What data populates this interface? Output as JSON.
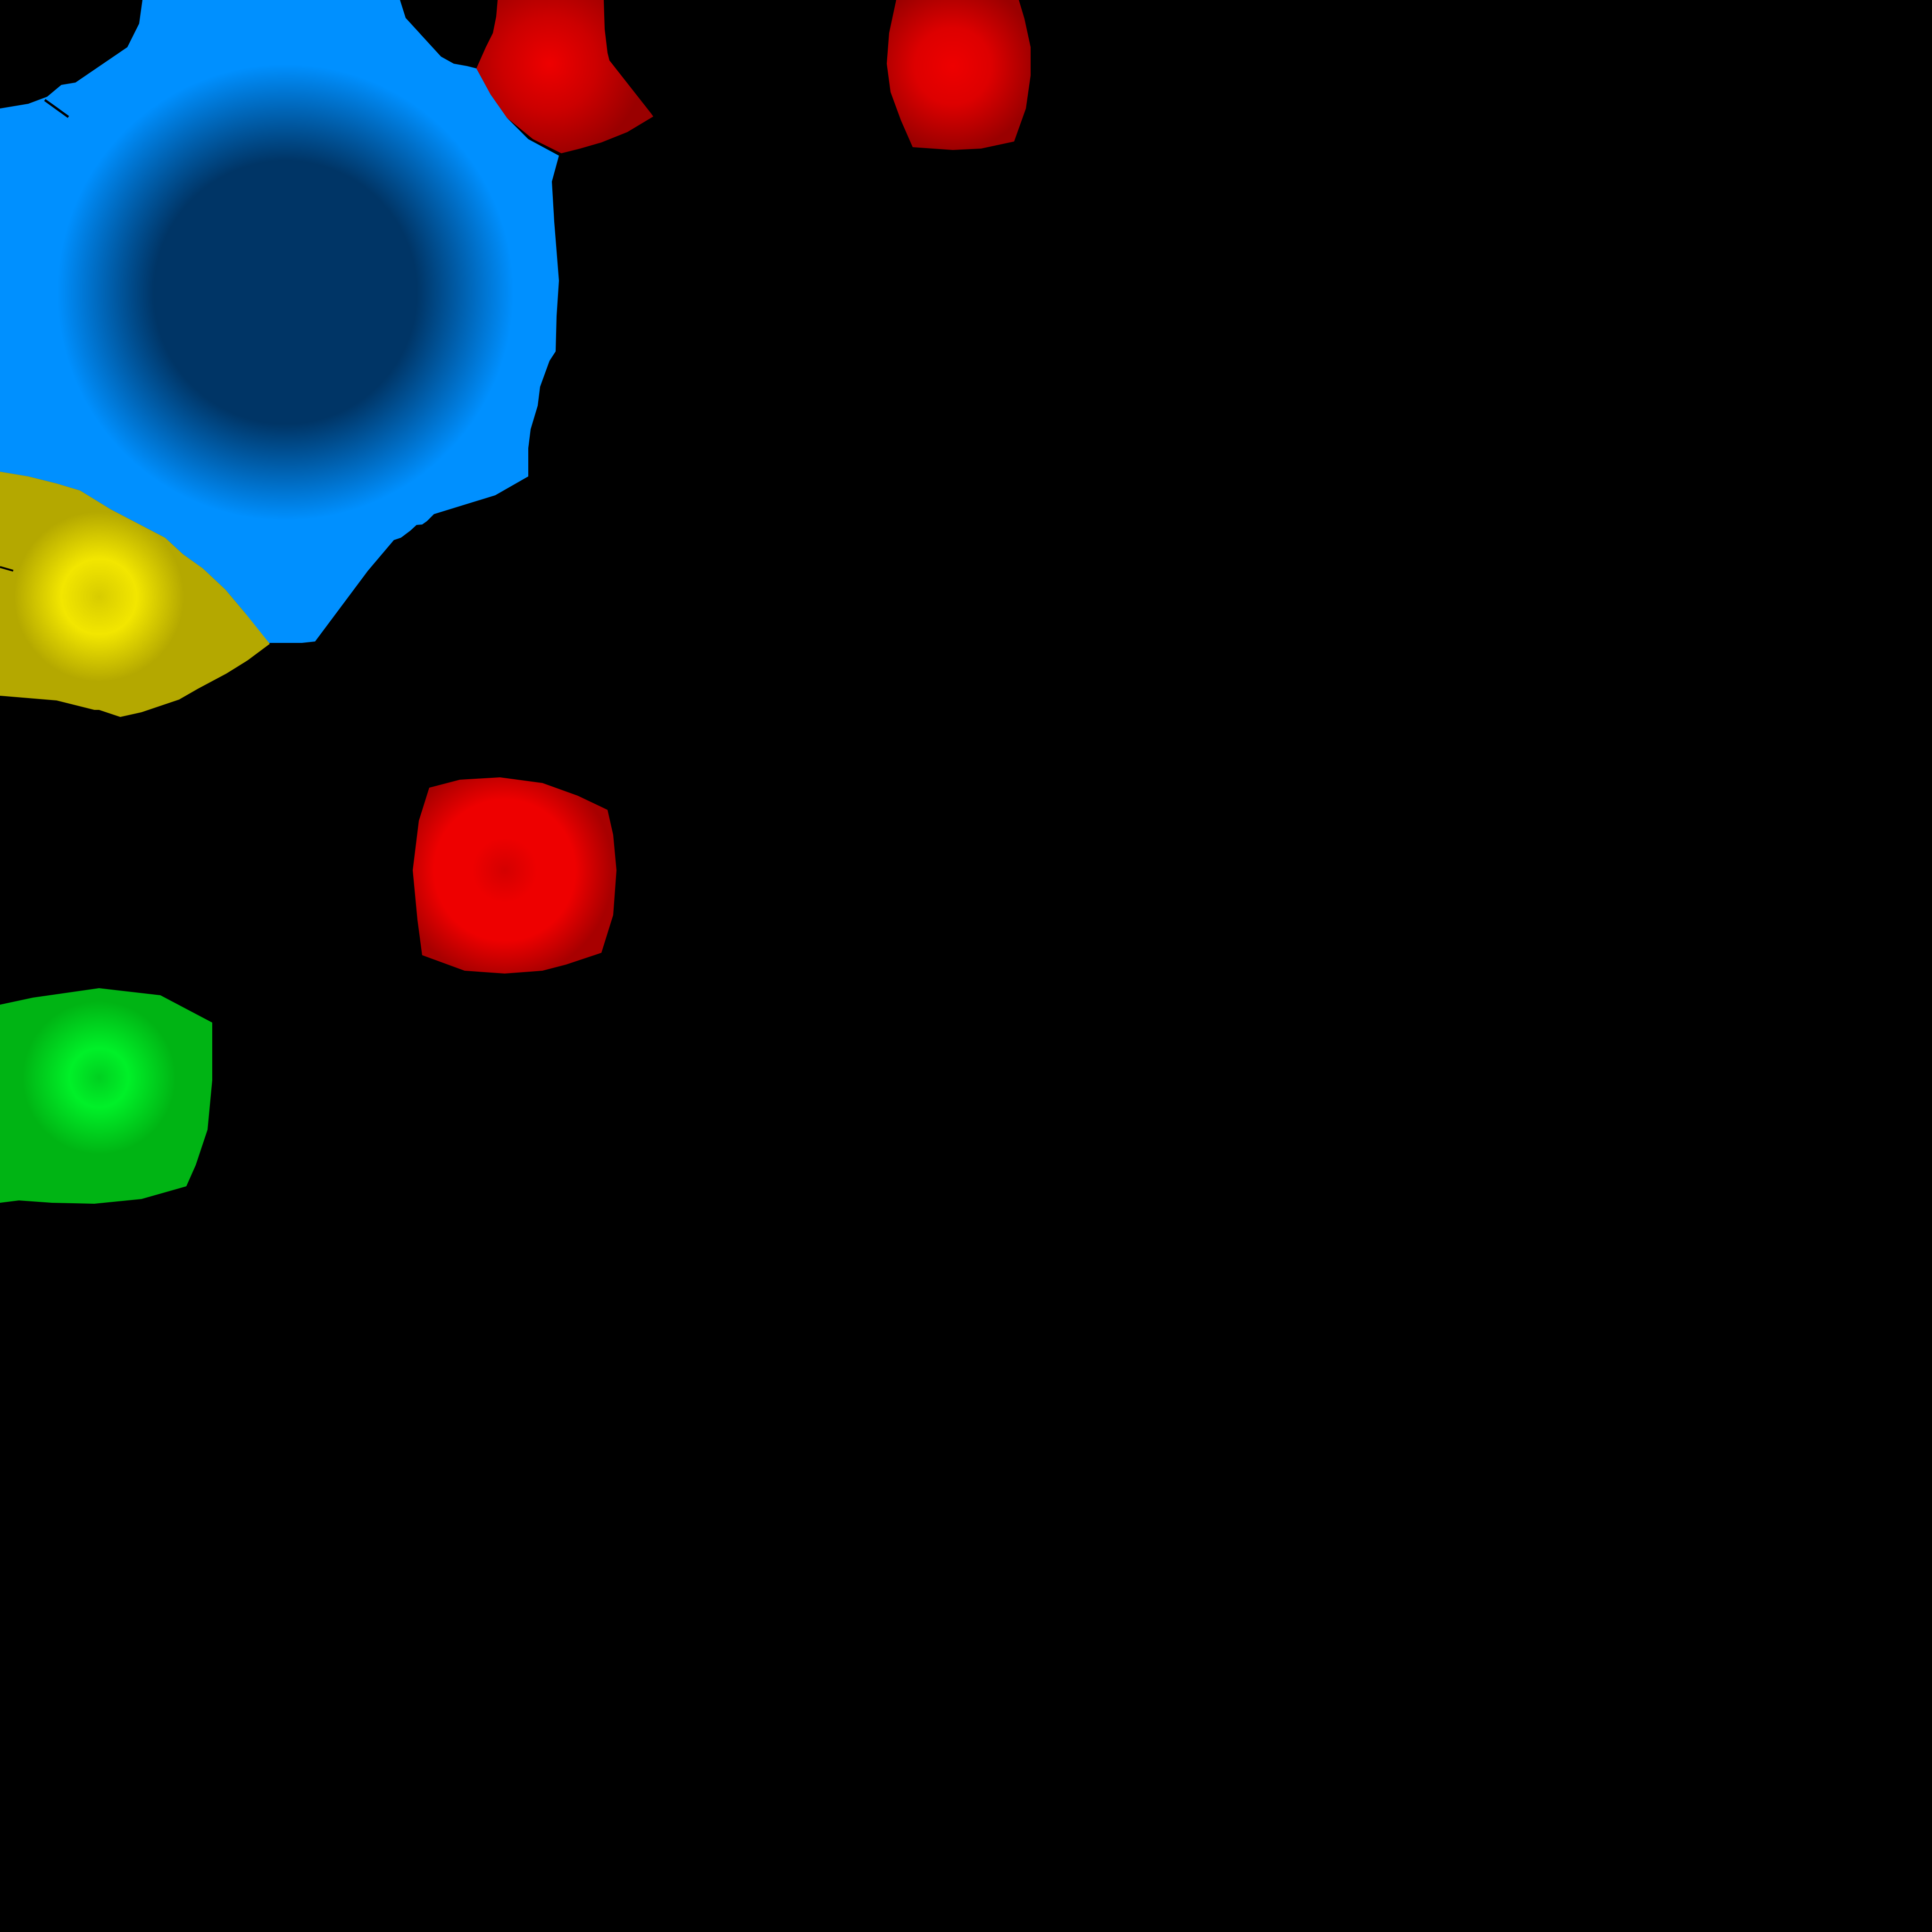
{
  "scene": {
    "background": "#000000",
    "blobs": [
      {
        "name": "blue-blob",
        "color": "#0090ff",
        "core": "#003566"
      },
      {
        "name": "yellow-blob",
        "color": "#b4a800",
        "core": "#f2e600"
      },
      {
        "name": "red-blob-top-left",
        "color": "#b40000",
        "core": "#ee0000"
      },
      {
        "name": "red-blob-top-right",
        "color": "#b40000",
        "core": "#ee0000"
      },
      {
        "name": "red-blob-middle",
        "color": "#b40000",
        "core": "#ee0000"
      },
      {
        "name": "green-blob",
        "color": "#00b414",
        "core": "#00f028"
      }
    ]
  }
}
